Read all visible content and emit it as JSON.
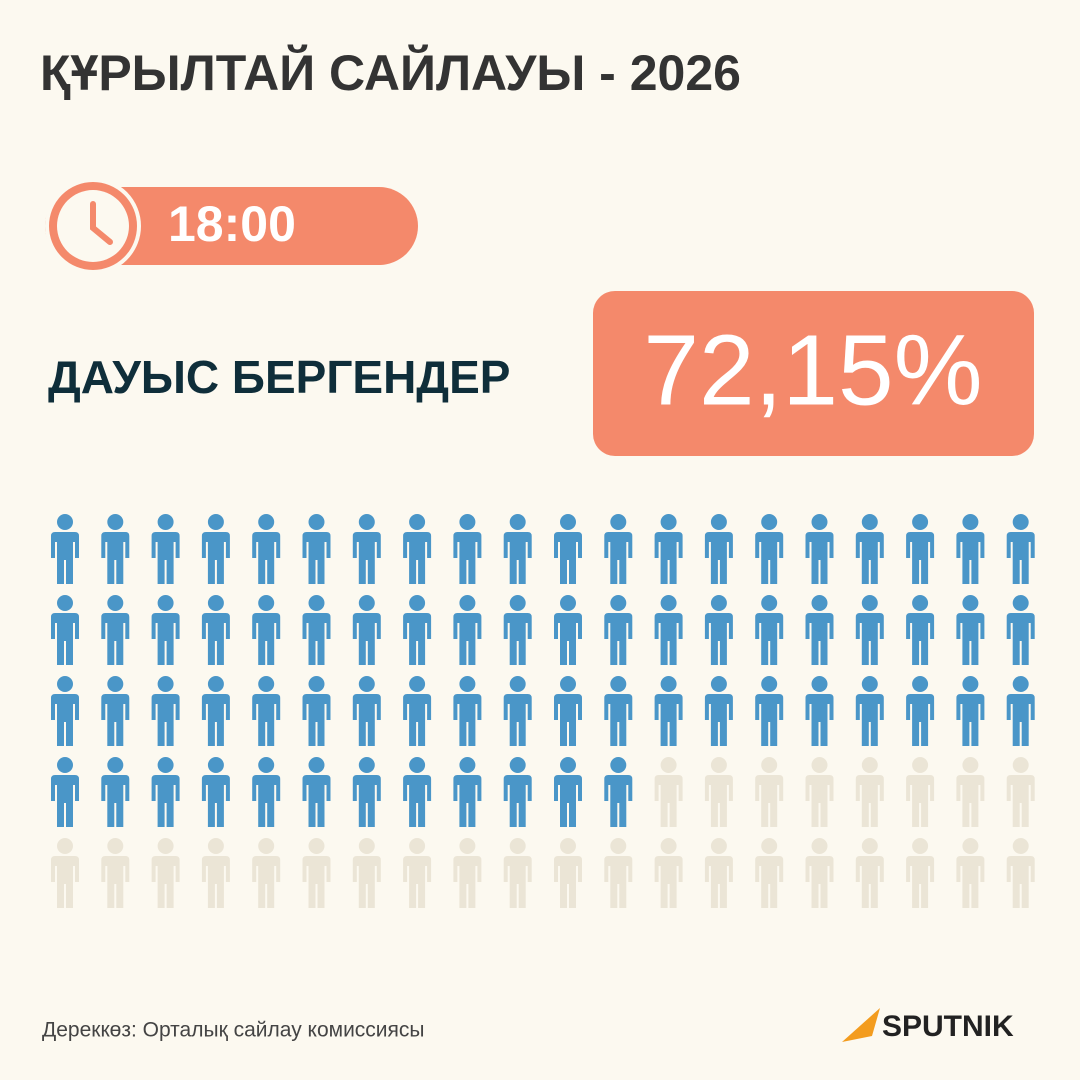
{
  "header": {
    "title": "ҚҰРЫЛТАЙ САЙЛАУЫ - 2026",
    "time": "18:00"
  },
  "chart_data": {
    "type": "pictogram",
    "label": "ДАУЫС БЕРГЕНДЕР",
    "values": [
      72.15
    ],
    "value_labels": [
      "72,15%"
    ],
    "ylim": [
      0,
      100
    ],
    "color": "#4a96c8",
    "empty_color": "#ebe5d6"
  },
  "footer": {
    "source": "Дереккөз: Орталық сайлау комиссиясы",
    "logo": "SPUTNIK"
  }
}
